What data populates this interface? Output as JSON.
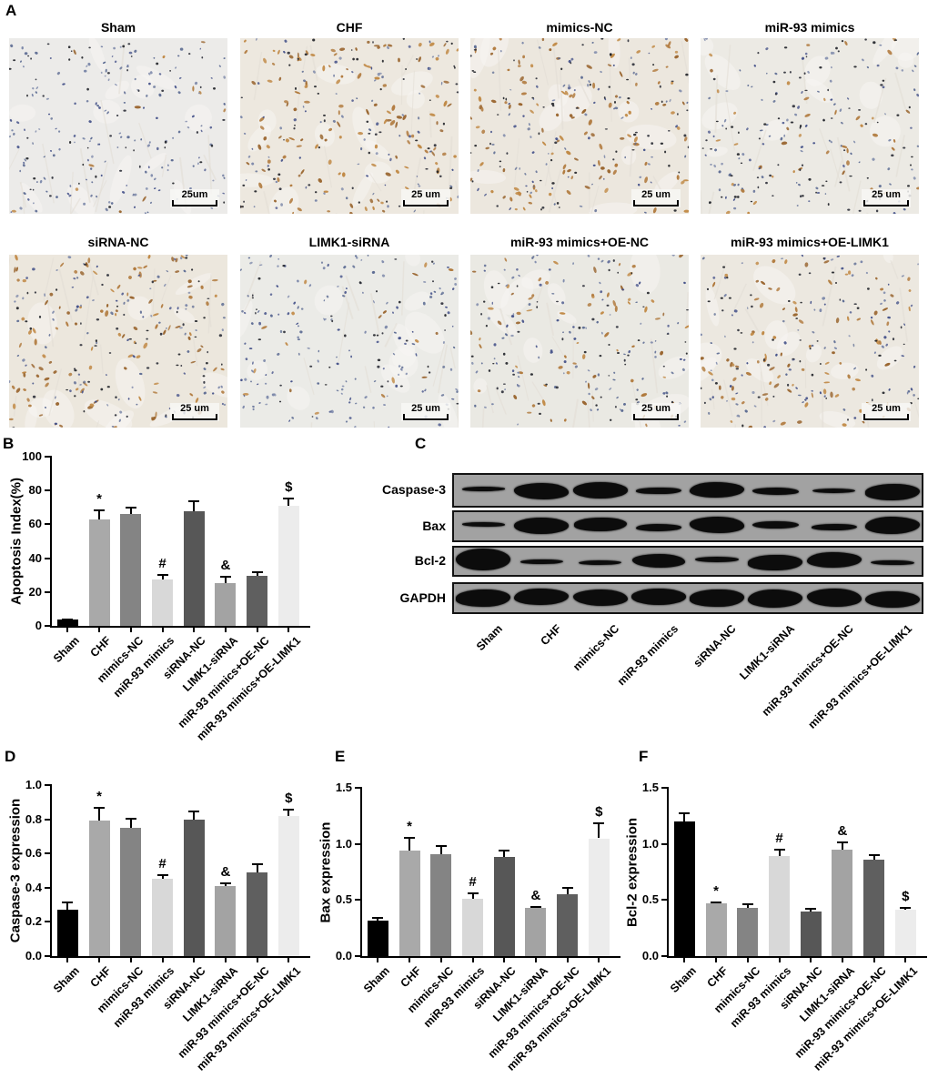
{
  "groups": [
    "Sham",
    "CHF",
    "mimics-NC",
    "miR-93 mimics",
    "siRNA-NC",
    "LIMK1-siRNA",
    "miR-93 mimics+OE-NC",
    "miR-93 mimics+OE-LIMK1"
  ],
  "panels": {
    "A": {
      "label": "A",
      "images": [
        {
          "title": "Sham",
          "scale_label": "25um",
          "tint": "#ecebe9",
          "brown_dots": 12,
          "blue_dots": 175,
          "dark_dots": 55,
          "seed": 1
        },
        {
          "title": "CHF",
          "scale_label": "25 um",
          "tint": "#ede8df",
          "brown_dots": 135,
          "blue_dots": 85,
          "dark_dots": 60,
          "seed": 2
        },
        {
          "title": "mimics-NC",
          "scale_label": "25 um",
          "tint": "#ece7de",
          "brown_dots": 120,
          "blue_dots": 90,
          "dark_dots": 70,
          "seed": 3
        },
        {
          "title": "miR-93 mimics",
          "scale_label": "25 um",
          "tint": "#eceae4",
          "brown_dots": 45,
          "blue_dots": 110,
          "dark_dots": 85,
          "seed": 4
        },
        {
          "title": "siRNA-NC",
          "scale_label": "25 um",
          "tint": "#ece7dd",
          "brown_dots": 115,
          "blue_dots": 100,
          "dark_dots": 60,
          "seed": 5
        },
        {
          "title": "LIMK1-siRNA",
          "scale_label": "25 um",
          "tint": "#ebebe7",
          "brown_dots": 18,
          "blue_dots": 165,
          "dark_dots": 40,
          "seed": 6
        },
        {
          "title": "miR-93 mimics+OE-NC",
          "scale_label": "25 um",
          "tint": "#eae9e3",
          "brown_dots": 70,
          "blue_dots": 115,
          "dark_dots": 60,
          "seed": 7
        },
        {
          "title": "miR-93 mimics+OE-LIMK1",
          "scale_label": "25 um",
          "tint": "#ece8e0",
          "brown_dots": 95,
          "blue_dots": 100,
          "dark_dots": 55,
          "seed": 8
        }
      ]
    },
    "B": {
      "label": "B"
    },
    "C": {
      "label": "C",
      "lane_labels": [
        "Sham",
        "CHF",
        "mimics-NC",
        "miR-93 mimics",
        "siRNA-NC",
        "LIMK1-siRNA",
        "miR-93 mimics+OE-NC",
        "miR-93 mimics+OE-LIMK1"
      ],
      "rows": [
        {
          "protein": "Caspase-3",
          "band_intensity": [
            1,
            3,
            3,
            1.5,
            3,
            1.5,
            1.1,
            3
          ]
        },
        {
          "protein": "Bax",
          "band_intensity": [
            1,
            3,
            2.6,
            1.5,
            3,
            1.6,
            1.4,
            3.2
          ]
        },
        {
          "protein": "Bcl-2",
          "band_intensity": [
            4,
            1.1,
            1.1,
            2.6,
            1.2,
            3,
            3,
            1.2
          ]
        },
        {
          "protein": "GAPDH",
          "band_intensity": [
            3.2,
            3.2,
            3.1,
            3,
            3.3,
            3.4,
            3.4,
            3.1
          ]
        }
      ]
    },
    "D": {
      "label": "D"
    },
    "E": {
      "label": "E"
    },
    "F": {
      "label": "F"
    }
  },
  "chart_data": [
    {
      "panel": "B",
      "type": "bar",
      "title": "",
      "xlabel": "",
      "ylabel": "Apoptosis Index(%)",
      "categories": [
        "Sham",
        "CHF",
        "mimics-NC",
        "miR-93 mimics",
        "siRNA-NC",
        "LIMK1-siRNA",
        "miR-93 mimics+OE-NC",
        "miR-93 mimics+OE-LIMK1"
      ],
      "values": [
        3.5,
        63,
        66,
        27.5,
        68,
        25.5,
        29.5,
        71
      ],
      "errors": [
        1,
        6,
        4.5,
        3,
        6,
        4,
        3,
        5
      ],
      "sig": [
        "",
        "*",
        "",
        "#",
        "",
        "&",
        "",
        "$"
      ],
      "ylim": [
        0,
        100
      ],
      "ytick_labels": [
        "0",
        "20",
        "40",
        "60",
        "80",
        "100"
      ],
      "bar_colors": [
        "#000000",
        "#a9a9a9",
        "#848484",
        "#d8d8d8",
        "#575757",
        "#a3a3a3",
        "#5f5f5f",
        "#ececec"
      ],
      "grid": false,
      "legend": false
    },
    {
      "panel": "D",
      "type": "bar",
      "title": "",
      "xlabel": "",
      "ylabel": "Caspase-3 expression",
      "categories": [
        "Sham",
        "CHF",
        "mimics-NC",
        "miR-93 mimics",
        "siRNA-NC",
        "LIMK1-siRNA",
        "miR-93 mimics+OE-NC",
        "miR-93 mimics+OE-LIMK1"
      ],
      "values": [
        0.27,
        0.79,
        0.75,
        0.45,
        0.8,
        0.41,
        0.49,
        0.82
      ],
      "errors": [
        0.05,
        0.08,
        0.06,
        0.03,
        0.05,
        0.02,
        0.05,
        0.04
      ],
      "sig": [
        "",
        "*",
        "",
        "#",
        "",
        "&",
        "",
        "$"
      ],
      "ylim": [
        0,
        1.0
      ],
      "ytick_labels": [
        "0.0",
        "0.2",
        "0.4",
        "0.6",
        "0.8",
        "1.0"
      ],
      "bar_colors": [
        "#000000",
        "#a9a9a9",
        "#848484",
        "#d8d8d8",
        "#575757",
        "#a3a3a3",
        "#5f5f5f",
        "#ececec"
      ],
      "grid": false,
      "legend": false
    },
    {
      "panel": "E",
      "type": "bar",
      "title": "",
      "xlabel": "",
      "ylabel": "Bax expression",
      "categories": [
        "Sham",
        "CHF",
        "mimics-NC",
        "miR-93 mimics",
        "siRNA-NC",
        "LIMK1-siRNA",
        "miR-93 mimics+OE-NC",
        "miR-93 mimics+OE-LIMK1"
      ],
      "values": [
        0.32,
        0.94,
        0.91,
        0.51,
        0.88,
        0.43,
        0.55,
        1.05
      ],
      "errors": [
        0.03,
        0.12,
        0.08,
        0.06,
        0.07,
        0.02,
        0.07,
        0.14
      ],
      "sig": [
        "",
        "*",
        "",
        "#",
        "",
        "&",
        "",
        "$"
      ],
      "ylim": [
        0,
        1.5
      ],
      "ytick_labels": [
        "0.0",
        "0.5",
        "1.0",
        "1.5"
      ],
      "bar_colors": [
        "#000000",
        "#a9a9a9",
        "#848484",
        "#d8d8d8",
        "#575757",
        "#a3a3a3",
        "#5f5f5f",
        "#ececec"
      ],
      "grid": false,
      "legend": false
    },
    {
      "panel": "F",
      "type": "bar",
      "title": "",
      "xlabel": "",
      "ylabel": "Bcl-2 expression",
      "categories": [
        "Sham",
        "CHF",
        "mimics-NC",
        "miR-93 mimics",
        "siRNA-NC",
        "LIMK1-siRNA",
        "miR-93 mimics+OE-NC",
        "miR-93 mimics+OE-LIMK1"
      ],
      "values": [
        1.2,
        0.47,
        0.43,
        0.89,
        0.4,
        0.95,
        0.86,
        0.41
      ],
      "errors": [
        0.08,
        0.02,
        0.04,
        0.07,
        0.03,
        0.07,
        0.05,
        0.03
      ],
      "sig": [
        "",
        "*",
        "",
        "#",
        "",
        "&",
        "",
        "$"
      ],
      "ylim": [
        0,
        1.5
      ],
      "ytick_labels": [
        "0.0",
        "0.5",
        "1.0",
        "1.5"
      ],
      "bar_colors": [
        "#000000",
        "#a9a9a9",
        "#848484",
        "#d8d8d8",
        "#575757",
        "#a3a3a3",
        "#5f5f5f",
        "#ececec"
      ],
      "grid": false,
      "legend": false
    }
  ]
}
